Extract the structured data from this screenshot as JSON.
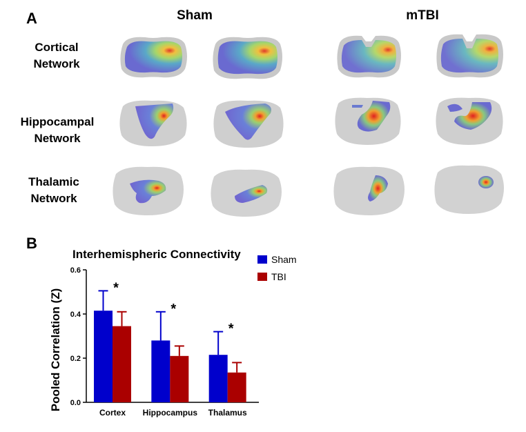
{
  "panel_a": {
    "label": "A",
    "columns": [
      "Sham",
      "mTBI"
    ],
    "rows": [
      {
        "line1": "Cortical",
        "line2": "Network"
      },
      {
        "line1": "Hippocampal",
        "line2": "Network"
      },
      {
        "line1": "Thalamic",
        "line2": "Network"
      }
    ]
  },
  "panel_b": {
    "label": "B"
  },
  "chart_data": {
    "type": "bar",
    "title": "Interhemispheric  Connectivity",
    "xlabel": "",
    "ylabel": "Pooled Correlation (Z)",
    "ylim": [
      0,
      0.6
    ],
    "yticks": [
      "0.0",
      "0.2",
      "0.4",
      "0.6"
    ],
    "categories": [
      "Cortex",
      "Hippocampus",
      "Thalamus"
    ],
    "series": [
      {
        "name": "Sham",
        "color": "#0000cc",
        "values": [
          0.415,
          0.28,
          0.215
        ],
        "errors": [
          0.09,
          0.13,
          0.105
        ]
      },
      {
        "name": "TBI",
        "color": "#aa0000",
        "values": [
          0.345,
          0.21,
          0.135
        ],
        "errors": [
          0.065,
          0.045,
          0.045
        ]
      }
    ],
    "annotations": [
      {
        "category": "Cortex",
        "text": "*"
      },
      {
        "category": "Hippocampus",
        "text": "*"
      },
      {
        "category": "Thalamus",
        "text": "*"
      }
    ],
    "legend": "top-right"
  }
}
